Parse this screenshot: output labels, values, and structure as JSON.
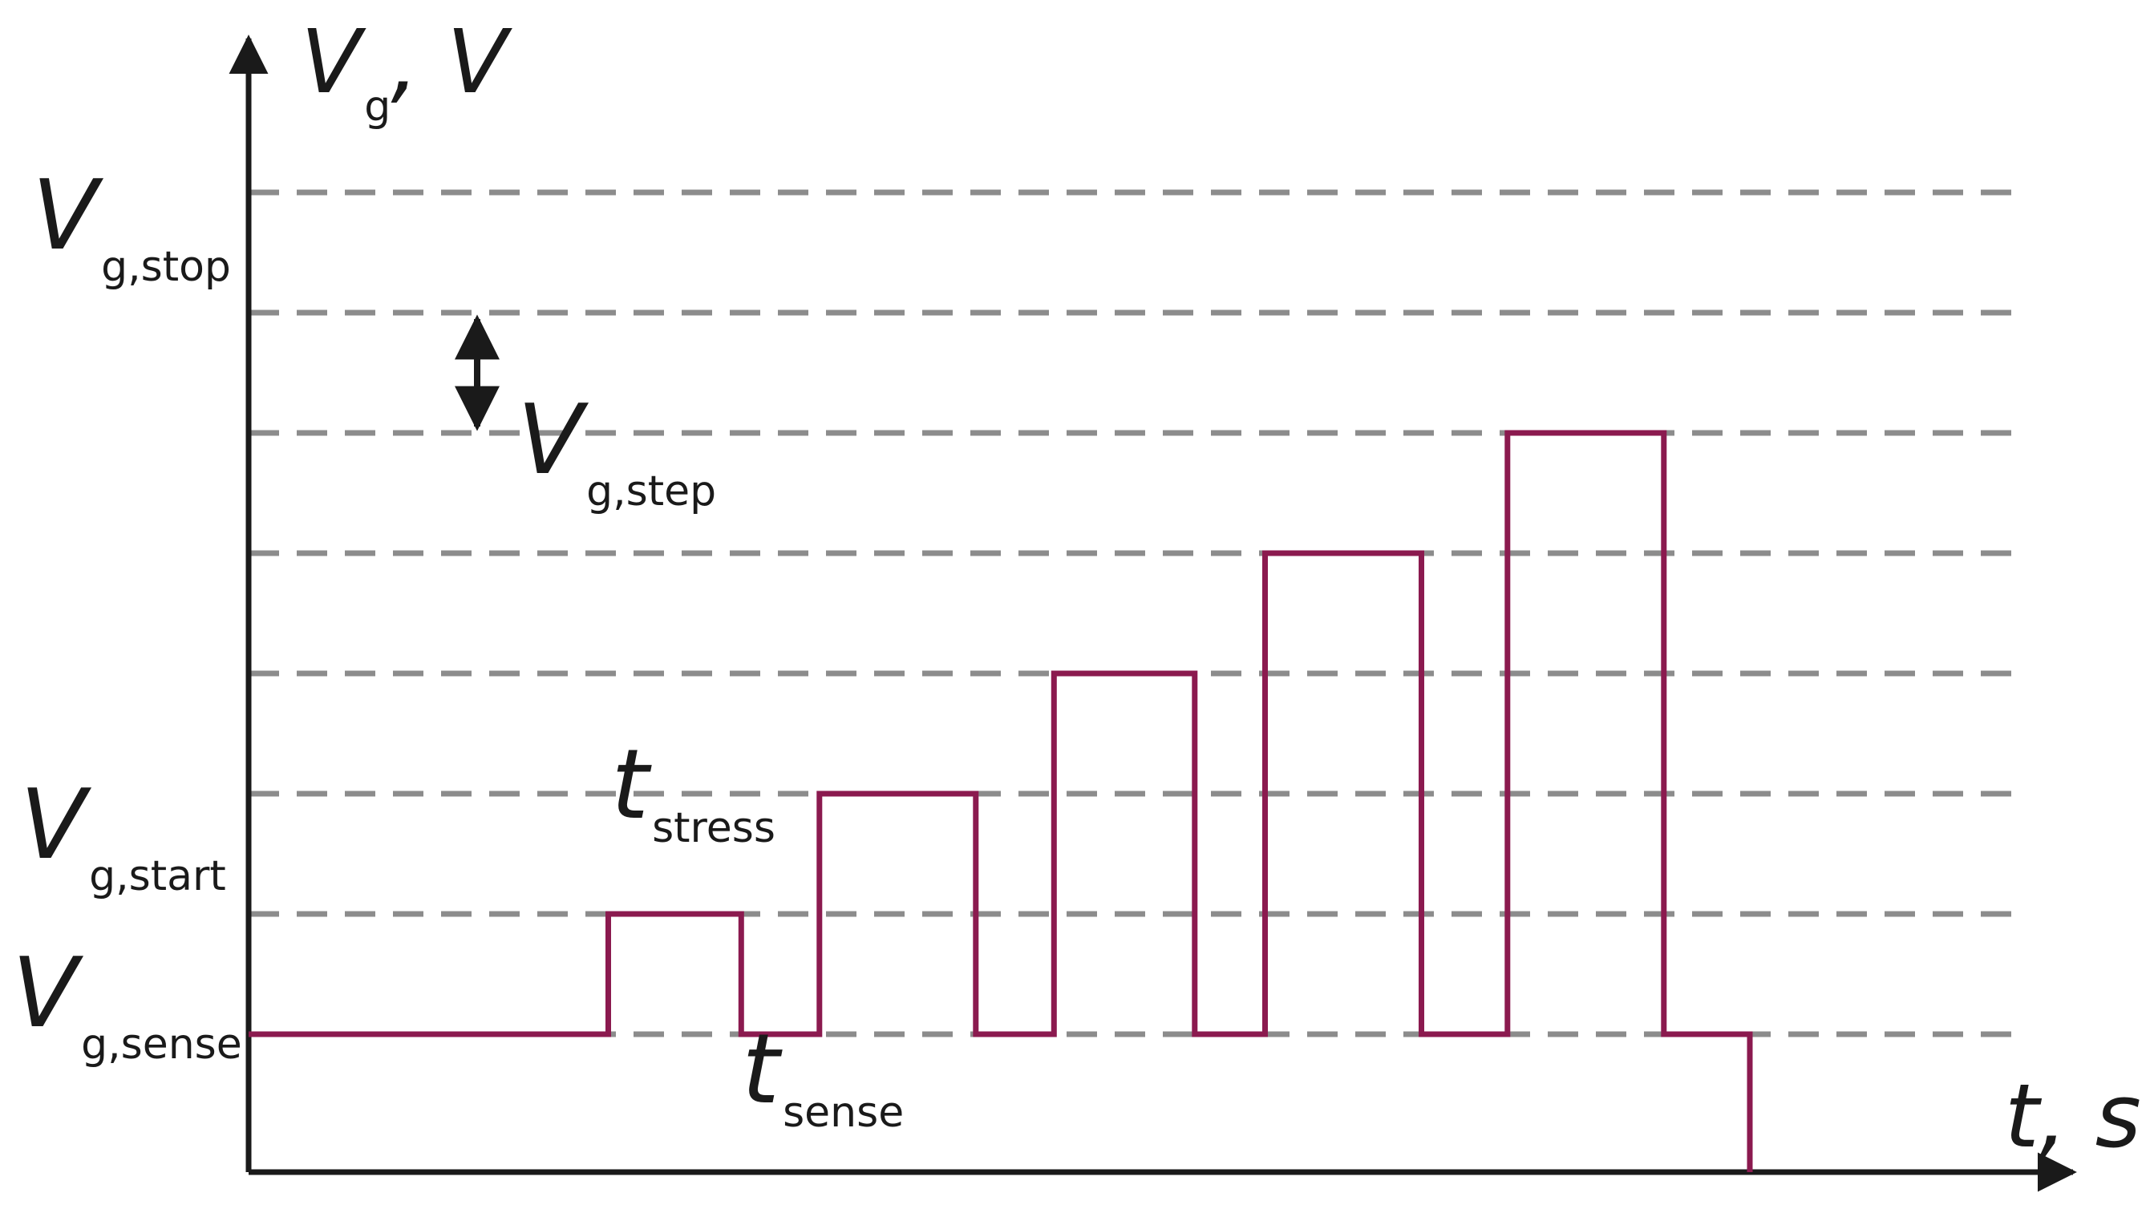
{
  "chart_data": {
    "type": "line",
    "title": "",
    "xlabel": "t, s",
    "ylabel": {
      "main": "V",
      "sub": "g",
      "suffix": ", V"
    },
    "level_labels": [
      {
        "main": "V",
        "sub": "g,stop"
      },
      {
        "main": "V",
        "sub": "g,start"
      },
      {
        "main": "V",
        "sub": "g,sense"
      }
    ],
    "step_annotation": {
      "main": "V",
      "sub": "g,step"
    },
    "time_annotations": [
      {
        "main": "t",
        "sub": "stress"
      },
      {
        "main": "t",
        "sub": "sense"
      }
    ],
    "levels": {
      "sense": 0,
      "start": 1,
      "stop": 7,
      "gridlines": [
        0,
        1,
        2,
        3,
        4,
        5,
        6,
        7
      ]
    },
    "waveform": {
      "x": [
        0,
        2.3,
        2.3,
        3.15,
        3.15,
        3.65,
        3.65,
        4.65,
        4.65,
        5.15,
        5.15,
        6.05,
        6.05,
        6.5,
        6.5,
        7.5,
        7.5,
        8.05,
        8.05,
        9.05,
        9.05,
        9.6,
        9.6
      ],
      "y": [
        0,
        0,
        1,
        1,
        0,
        0,
        2,
        2,
        0,
        0,
        3,
        3,
        0,
        0,
        4,
        4,
        0,
        0,
        5,
        5,
        0,
        0,
        -0.8
      ]
    },
    "xlim": [
      0,
      11.2
    ],
    "ylim": [
      -0.8,
      7.9
    ],
    "colors": {
      "waveform": "#8b1a4f",
      "gridline": "#8c8c8c",
      "axis": "#1a1a1a"
    },
    "grid": "dashed horizontal"
  }
}
